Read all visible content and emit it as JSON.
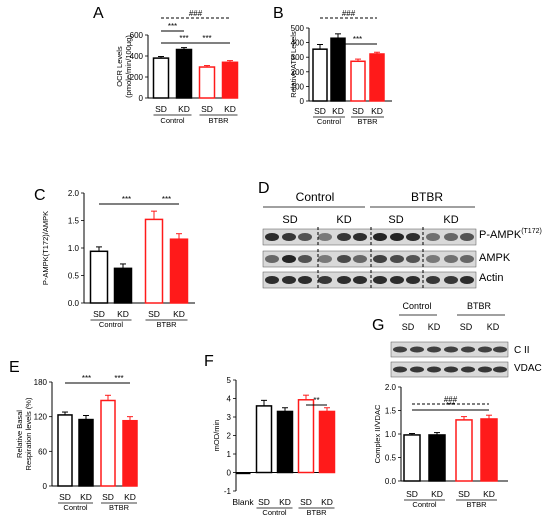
{
  "colors": {
    "control": "#000000",
    "btbr": "#ff1a1a"
  },
  "chart_data": [
    {
      "panel": "A",
      "type": "bar",
      "categories": [
        "SD",
        "KD",
        "SD",
        "KD"
      ],
      "groups": [
        "Control",
        "BTBR"
      ],
      "ylabel": "OCR Levels (pmole/min/100µg)",
      "ylim": [
        0,
        600
      ],
      "yticks": [
        "0",
        "200",
        "400",
        "600"
      ],
      "values": [
        380,
        462,
        295,
        340
      ],
      "errors": [
        15,
        18,
        14,
        16
      ],
      "significance": [
        {
          "from": 0,
          "to": 3,
          "label": "###",
          "style": "dashed"
        },
        {
          "from": 0,
          "to": 1,
          "label": "***",
          "style": "solid"
        },
        {
          "from": 0,
          "to": 2,
          "label": "***",
          "style": "solid"
        },
        {
          "from": 1,
          "to": 3,
          "label": "***",
          "style": "solid"
        }
      ]
    },
    {
      "panel": "B",
      "type": "bar",
      "categories": [
        "SD",
        "KD",
        "SD",
        "KD"
      ],
      "groups": [
        "Control",
        "BTBR"
      ],
      "ylabel": "Relative ATP Levels",
      "ylim": [
        0,
        500
      ],
      "yticks": [
        "0",
        "100",
        "200",
        "300",
        "400",
        "500"
      ],
      "values": [
        355,
        430,
        272,
        322
      ],
      "errors": [
        32,
        30,
        15,
        12
      ],
      "significance": [
        {
          "from": 0,
          "to": 3,
          "label": "###",
          "style": "dashed"
        },
        {
          "from": 1,
          "to": 3,
          "label": "***",
          "style": "solid"
        }
      ]
    },
    {
      "panel": "C",
      "type": "bar",
      "categories": [
        "SD",
        "KD",
        "SD",
        "KD"
      ],
      "groups": [
        "Control",
        "BTBR"
      ],
      "ylabel": "P-AMPK(T172)/AMPK",
      "ylim": [
        0,
        2.0
      ],
      "yticks": [
        "0.0",
        "0.5",
        "1.0",
        "1.5",
        "2.0"
      ],
      "values": [
        0.94,
        0.63,
        1.52,
        1.16
      ],
      "errors": [
        0.08,
        0.08,
        0.15,
        0.1
      ],
      "significance": [
        {
          "from": 0,
          "to": 2,
          "label": "***",
          "style": "solid"
        },
        {
          "from": 2,
          "to": 3,
          "label": "***",
          "style": "solid"
        }
      ]
    },
    {
      "panel": "E",
      "type": "bar",
      "categories": [
        "SD",
        "KD",
        "SD",
        "KD"
      ],
      "groups": [
        "Control",
        "BTBR"
      ],
      "ylabel": "Relative Basal Respiration levels (%)",
      "ylim": [
        0,
        180
      ],
      "yticks": [
        "0",
        "60",
        "120",
        "180"
      ],
      "values": [
        123,
        115,
        148,
        113
      ],
      "errors": [
        5,
        7,
        9,
        7
      ],
      "significance": [
        {
          "from": 0,
          "to": 2,
          "label": "***",
          "style": "solid"
        },
        {
          "from": 2,
          "to": 3,
          "label": "***",
          "style": "solid"
        }
      ]
    },
    {
      "panel": "F",
      "type": "bar",
      "categories": [
        "Blank",
        "SD",
        "KD",
        "SD",
        "KD"
      ],
      "groups": [
        "Control",
        "BTBR"
      ],
      "ylabel": "mOD/min",
      "ylim": [
        -1,
        5
      ],
      "yticks": [
        "-1",
        "0",
        "1",
        "2",
        "3",
        "4",
        "5"
      ],
      "values": [
        -0.05,
        3.6,
        3.3,
        3.93,
        3.3
      ],
      "errors": [
        0,
        0.3,
        0.2,
        0.25,
        0.2
      ],
      "significance": [
        {
          "from": 3,
          "to": 4,
          "label": "**",
          "style": "solid"
        }
      ]
    },
    {
      "panel": "G",
      "type": "bar",
      "categories": [
        "SD",
        "KD",
        "SD",
        "KD"
      ],
      "groups": [
        "Control",
        "BTBR"
      ],
      "ylabel": "Complex II/VDAC",
      "ylim": [
        0,
        2.0
      ],
      "yticks": [
        "0.0",
        "0.5",
        "1.0",
        "1.5",
        "2.0"
      ],
      "values": [
        0.98,
        0.98,
        1.3,
        1.32
      ],
      "errors": [
        0.03,
        0.05,
        0.07,
        0.08
      ],
      "significance": [
        {
          "from": 0,
          "to": 3,
          "label": "###",
          "style": "dashed"
        },
        {
          "from": 0,
          "to": 3,
          "label": "***",
          "style": "solid"
        }
      ]
    }
  ],
  "western_blot_D": {
    "panel": "D",
    "groups": [
      "Control",
      "BTBR"
    ],
    "conditions": [
      "SD",
      "KD",
      "SD",
      "KD"
    ],
    "rows": [
      "P-AMPK",
      "AMPK",
      "Actin"
    ],
    "superscript": "(T172)"
  },
  "western_blot_G": {
    "groups": [
      "Control",
      "BTBR"
    ],
    "conditions": [
      "SD",
      "KD",
      "SD",
      "KD"
    ],
    "rows": [
      "C II",
      "VDAC"
    ]
  }
}
